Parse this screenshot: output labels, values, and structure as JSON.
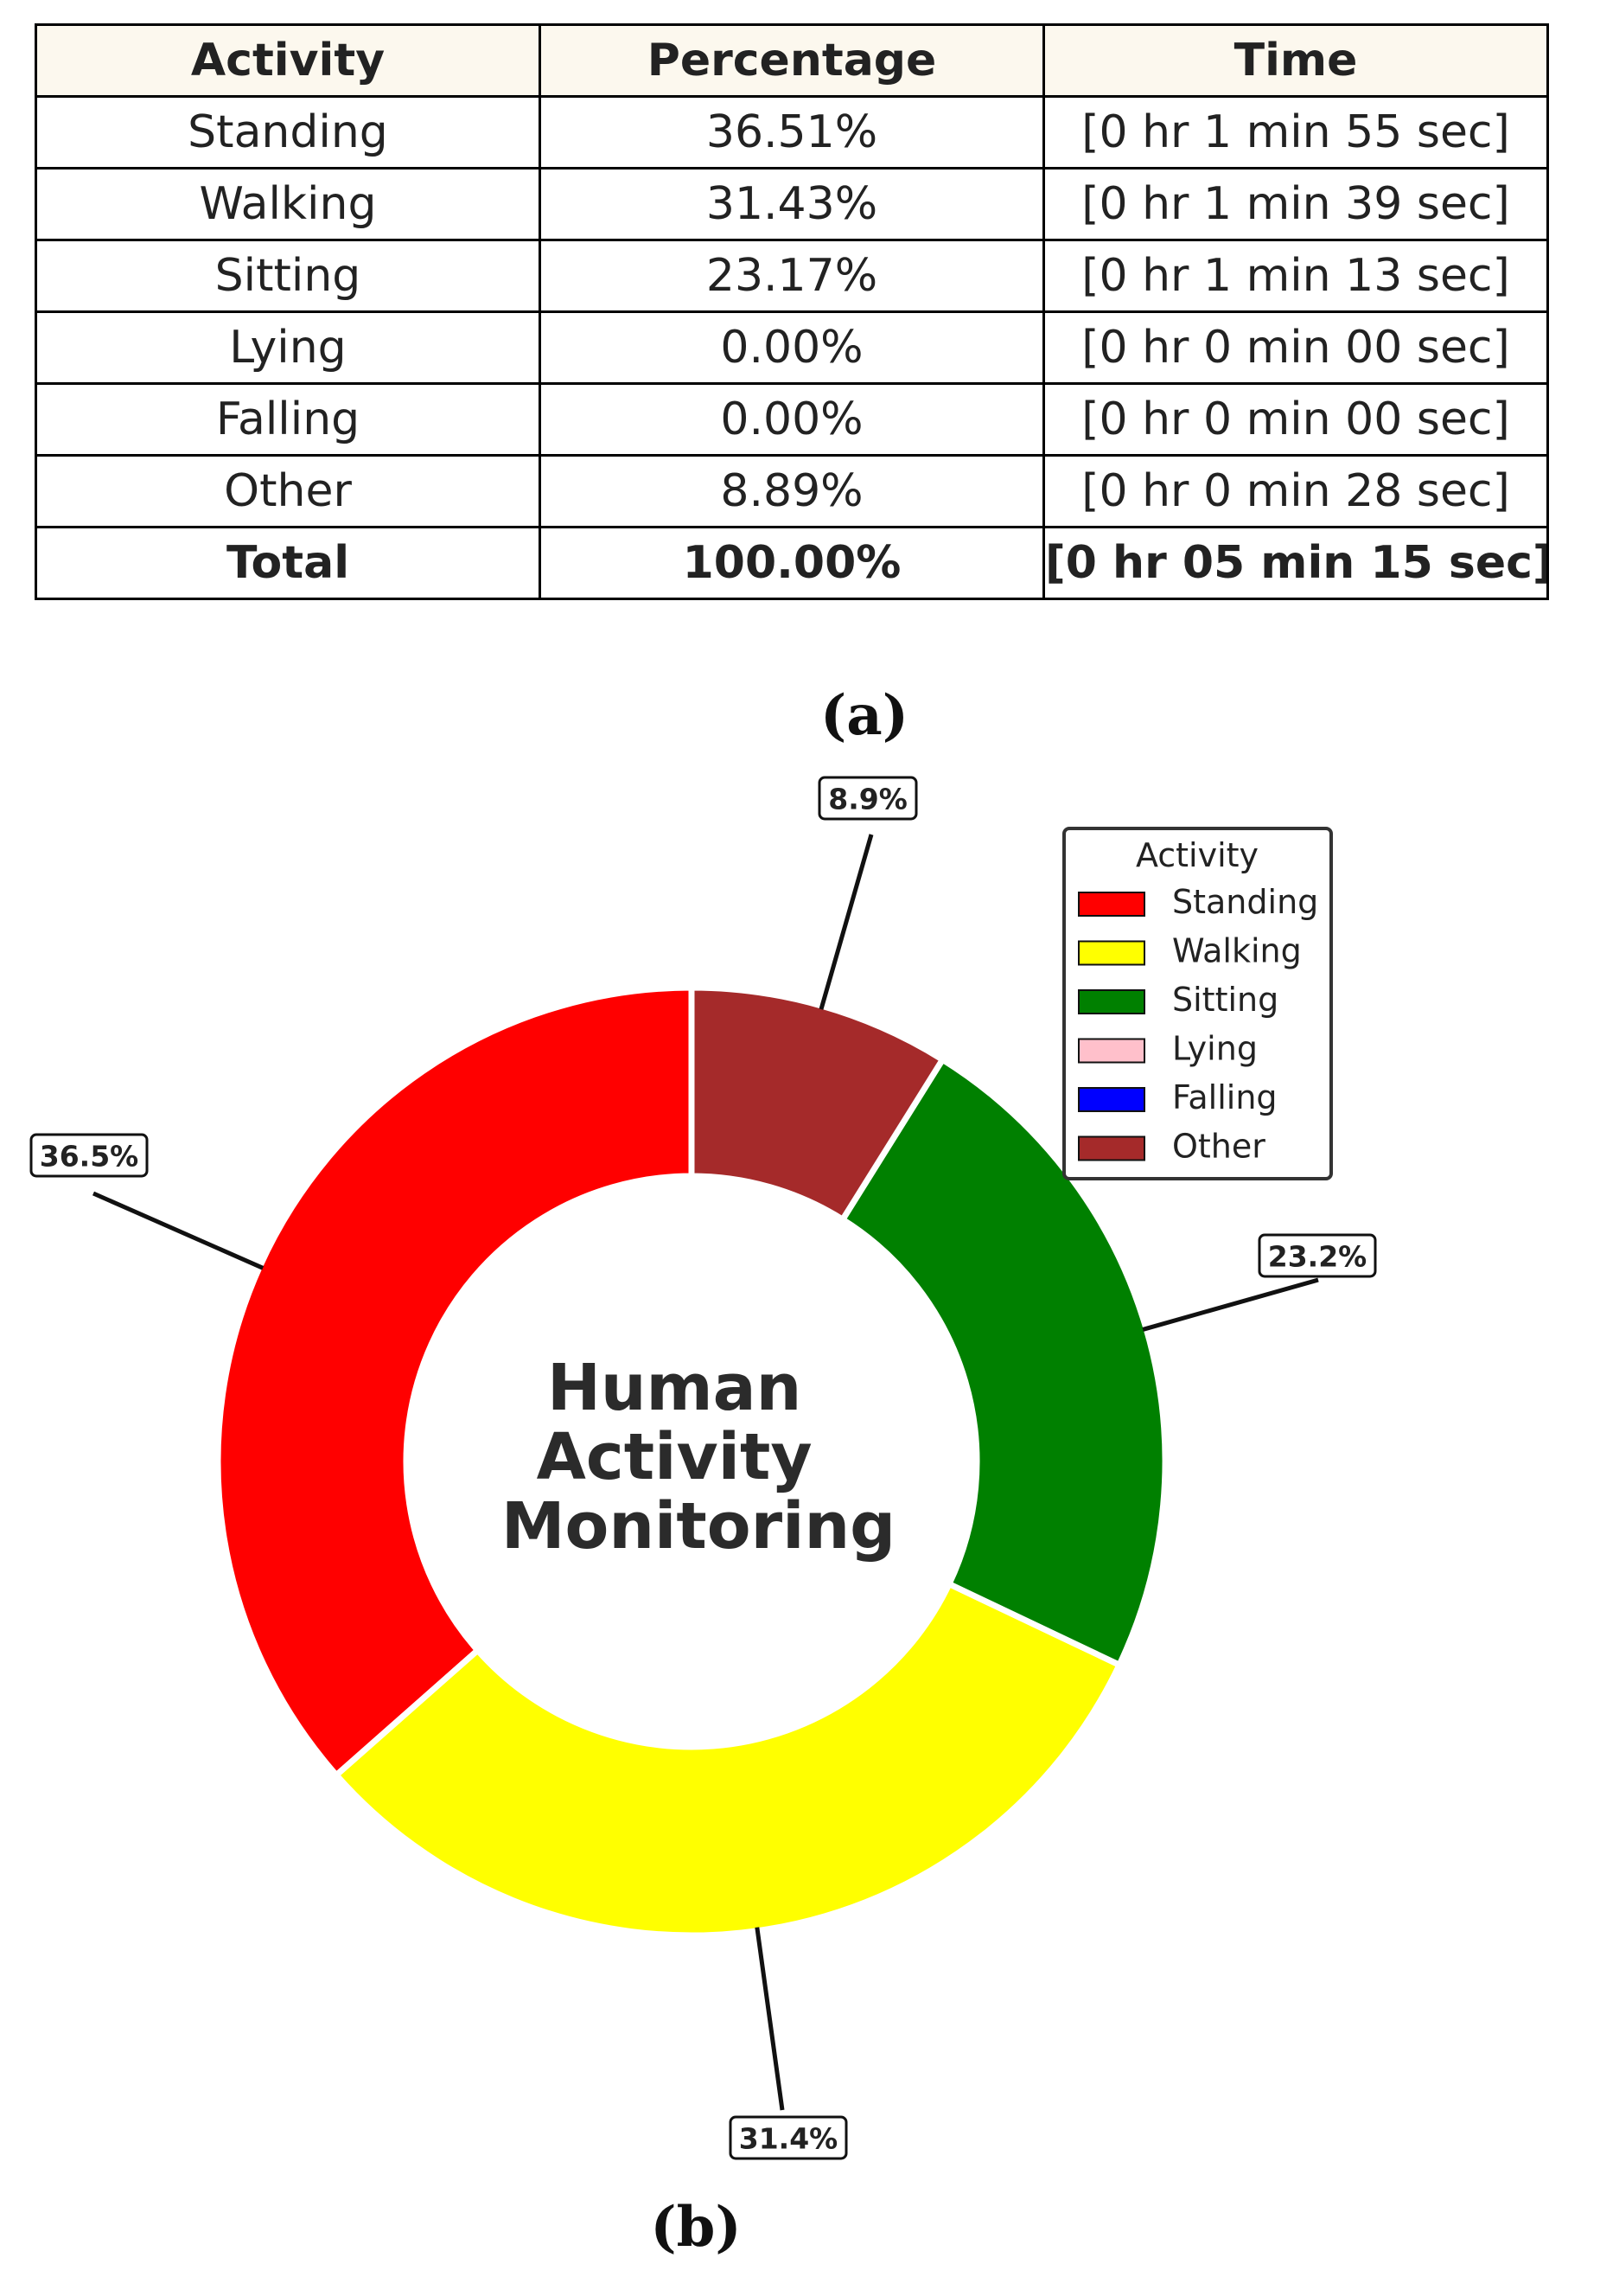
{
  "table": {
    "headers": [
      "Activity",
      "Percentage",
      "Time"
    ],
    "rows": [
      {
        "activity": "Standing",
        "percentage": "36.51%",
        "time": "[0 hr 1 min 55 sec]"
      },
      {
        "activity": "Walking",
        "percentage": "31.43%",
        "time": "[0 hr 1 min 39 sec]"
      },
      {
        "activity": "Sitting",
        "percentage": "23.17%",
        "time": "[0 hr 1 min 13 sec]"
      },
      {
        "activity": "Lying",
        "percentage": "0.00%",
        "time": "[0 hr 0 min 00 sec]"
      },
      {
        "activity": "Falling",
        "percentage": "0.00%",
        "time": "[0 hr 0 min 00 sec]"
      },
      {
        "activity": "Other",
        "percentage": "8.89%",
        "time": "[0 hr 0 min 28 sec]"
      }
    ],
    "total": {
      "activity": "Total",
      "percentage": "100.00%",
      "time": "[0 hr 05 min 15 sec]"
    }
  },
  "captions": {
    "a": "(a)",
    "b": "(b)"
  },
  "chart_data": {
    "type": "pie",
    "donut": true,
    "title_lines": [
      "Human",
      "Activity",
      "Monitoring"
    ],
    "legend_title": "Activity",
    "legend_position": "top-right",
    "categories": [
      "Standing",
      "Walking",
      "Sitting",
      "Lying",
      "Falling",
      "Other"
    ],
    "values": [
      36.51,
      31.43,
      23.17,
      0.0,
      0.0,
      8.89
    ],
    "colors": [
      "#ff0000",
      "#ffff00",
      "#008000",
      "#ffc0cb",
      "#0000ff",
      "#a52a2a"
    ],
    "slice_order": [
      "Standing",
      "Walking",
      "Sitting",
      "Other"
    ],
    "labels": {
      "Standing": "36.5%",
      "Walking": "31.4%",
      "Sitting": "23.2%",
      "Other": "8.9%"
    }
  }
}
